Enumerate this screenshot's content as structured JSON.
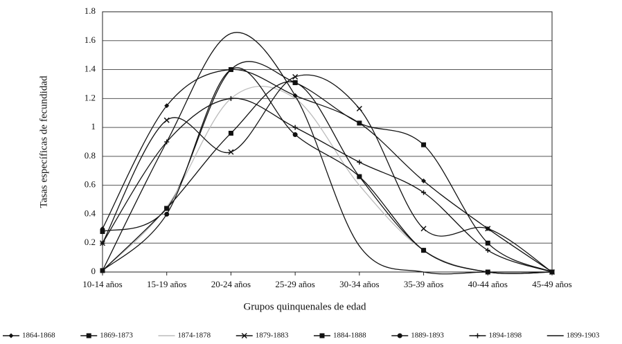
{
  "chart_data": {
    "type": "line",
    "xlabel": "Grupos quinquenales de edad",
    "ylabel": "Tasas específicas de fecundidad",
    "categories": [
      "10-14 años",
      "15-19 años",
      "20-24 años",
      "25-29 años",
      "30-34 años",
      "35-39 años",
      "40-44 años",
      "45-49 años"
    ],
    "ylim": [
      0,
      1.8
    ],
    "yticks": [
      0,
      0.2,
      0.4,
      0.6,
      0.8,
      1,
      1.2,
      1.4,
      1.6,
      1.8
    ],
    "grid": true,
    "legend": "bottom",
    "series": [
      {
        "name": "1864-1868",
        "color": "#111111",
        "marker": "diamond",
        "values": [
          0.3,
          1.15,
          1.4,
          1.22,
          1.03,
          0.63,
          0.3,
          0
        ]
      },
      {
        "name": "1869-1873",
        "color": "#111111",
        "marker": "square",
        "values": [
          0.28,
          0.44,
          1.4,
          1.31,
          1.03,
          0.88,
          0.2,
          0
        ]
      },
      {
        "name": "1874-1878",
        "color": "#bbbbbb",
        "marker": "none",
        "values": [
          0.01,
          0.45,
          1.2,
          1.2,
          0.6,
          0.15,
          0,
          0
        ]
      },
      {
        "name": "1879-1883",
        "color": "#111111",
        "marker": "cross",
        "values": [
          0.2,
          1.05,
          0.83,
          1.35,
          1.13,
          0.3,
          0.3,
          0
        ]
      },
      {
        "name": "1884-1888",
        "color": "#111111",
        "marker": "square",
        "values": [
          0.01,
          0.44,
          0.96,
          1.31,
          0.66,
          0.15,
          0,
          0
        ]
      },
      {
        "name": "1889-1893",
        "color": "#111111",
        "marker": "circle",
        "values": [
          0.01,
          0.4,
          1.4,
          0.95,
          0.66,
          0.15,
          0,
          0
        ]
      },
      {
        "name": "1894-1898",
        "color": "#111111",
        "marker": "plus",
        "values": [
          0.2,
          0.9,
          1.2,
          1.0,
          0.76,
          0.55,
          0.15,
          0
        ]
      },
      {
        "name": "1899-1903",
        "color": "#111111",
        "marker": "none",
        "values": [
          0.01,
          0.9,
          1.65,
          1.22,
          0.18,
          0,
          0,
          0
        ]
      }
    ]
  }
}
